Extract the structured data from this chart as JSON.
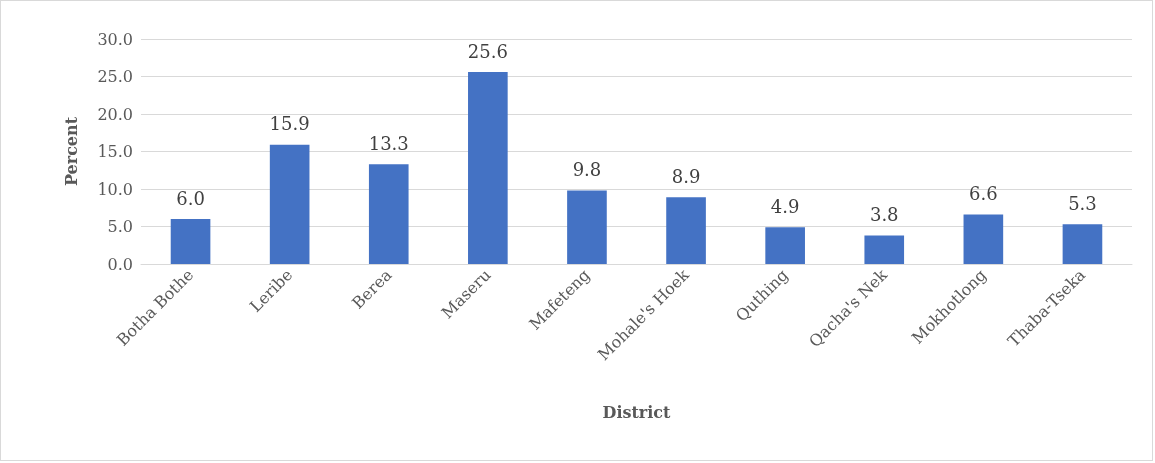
{
  "chart_data": {
    "type": "bar",
    "xlabel": "District",
    "ylabel": "Percent",
    "categories": [
      "Botha Bothe",
      "Leribe",
      "Berea",
      "Maseru",
      "Mafeteng",
      "Mohale's Hoek",
      "Quthing",
      "Qacha's Nek",
      "Mokhotlong",
      "Thaba-Tseka"
    ],
    "values": [
      6.0,
      15.9,
      13.3,
      25.6,
      9.8,
      8.9,
      4.9,
      3.8,
      6.6,
      5.3
    ],
    "color": "#4472c4",
    "ylim": [
      0,
      30
    ],
    "yticks": [
      {
        "value": 0,
        "label": "0.0"
      },
      {
        "value": 5,
        "label": "5.0"
      },
      {
        "value": 10,
        "label": "10.0"
      },
      {
        "value": 15,
        "label": "15.0"
      },
      {
        "value": 20,
        "label": "20.0"
      },
      {
        "value": 25,
        "label": "25.0"
      },
      {
        "value": 30,
        "label": "30.0"
      }
    ],
    "value_labels": [
      "6.0",
      "15.9",
      "13.3",
      "25.6",
      "9.8",
      "8.9",
      "4.9",
      "3.8",
      "6.6",
      "5.3"
    ],
    "grid": "y"
  }
}
